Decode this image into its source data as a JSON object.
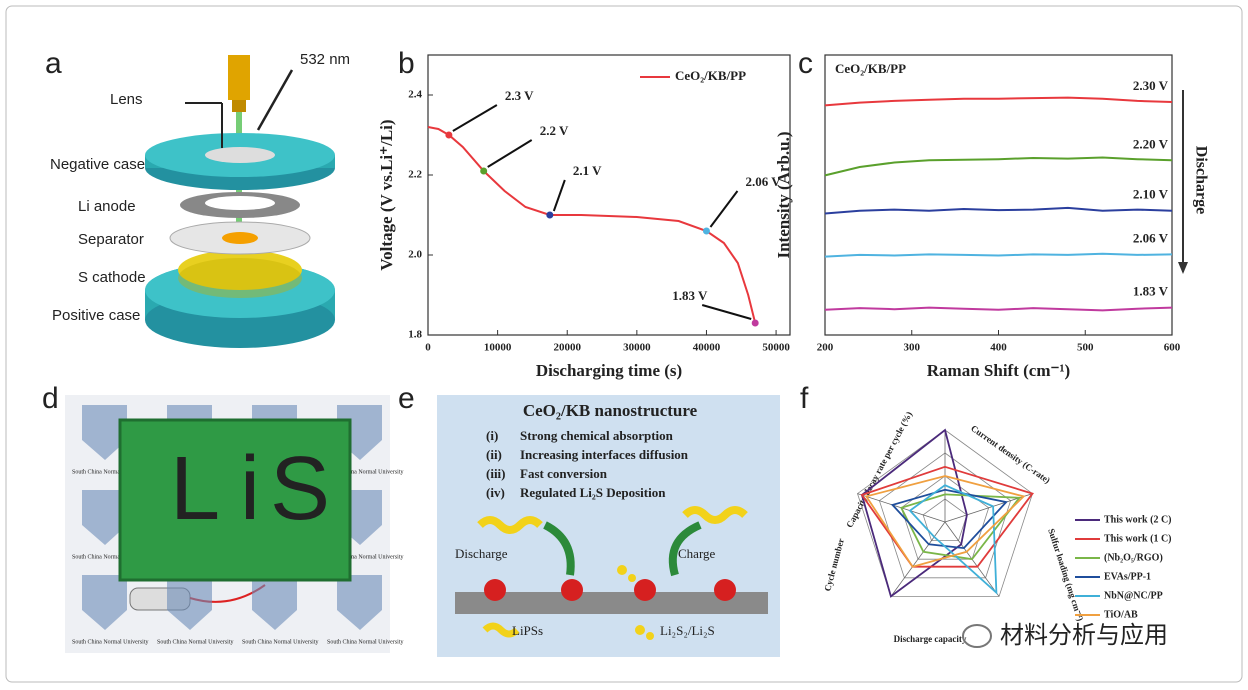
{
  "panel_labels": [
    "a",
    "b",
    "c",
    "d",
    "e",
    "f"
  ],
  "panel_a": {
    "labels": [
      "Lens",
      "532 nm",
      "Negative case",
      "Li anode",
      "Separator",
      "S cathode",
      "Positive case"
    ]
  },
  "panel_d": {
    "board_text": [
      "Li",
      "S"
    ],
    "logo_text": "South China Normal University"
  },
  "panel_e": {
    "title": "CeO₂/KB nanostructure",
    "items": [
      {
        "marker": "(i)",
        "text": "Strong chemical absorption"
      },
      {
        "marker": "(ii)",
        "text": "Increasing interfaces diffusion"
      },
      {
        "marker": "(iii)",
        "text": "Fast conversion"
      },
      {
        "marker": "(iv)",
        "text": "Regulated Li₂S Deposition"
      }
    ],
    "labels": [
      "Discharge",
      "Charge",
      "LiPSs",
      "Li₂S₂/Li₂S"
    ]
  },
  "watermark": "材料分析与应用",
  "chart_data": [
    {
      "type": "line",
      "legend": "CeO₂/KB/PP",
      "color": "#e8383d",
      "x_label": "Discharging time (s)",
      "y_label": "Voltage (V vs.Li⁺/Li)",
      "x": [
        0,
        1500,
        3000,
        5000,
        8000,
        11000,
        14000,
        17500,
        22000,
        30000,
        36000,
        40000,
        42500,
        44500,
        46000,
        47000
      ],
      "values": [
        2.32,
        2.315,
        2.3,
        2.27,
        2.21,
        2.16,
        2.12,
        2.1,
        2.1,
        2.095,
        2.085,
        2.06,
        2.03,
        1.98,
        1.9,
        1.83
      ],
      "xlim": [
        0,
        52000
      ],
      "xticks": [
        0,
        10000,
        20000,
        30000,
        40000,
        50000
      ],
      "ylim": [
        1.8,
        2.5
      ],
      "yticks": [
        1.8,
        {
          "value": 2,
          "label": "2.0"
        },
        2.2,
        2.4
      ],
      "annotations": [
        {
          "text": "2.3 V",
          "x": 3000,
          "y": 2.3,
          "color": "#e8383d"
        },
        {
          "text": "2.2 V",
          "x": 8000,
          "y": 2.21,
          "color": "#5aa02c"
        },
        {
          "text": "2.1 V",
          "x": 17500,
          "y": 2.1,
          "color": "#2b3f9e"
        },
        {
          "text": "2.06 V",
          "x": 40000,
          "y": 2.06,
          "color": "#4fb3e0"
        },
        {
          "text": "1.83 V",
          "x": 47000,
          "y": 1.83,
          "color": "#c03a9e"
        }
      ]
    },
    {
      "type": "line",
      "title": "CeO₂/KB/PP",
      "x_label": "Raman Shift (cm⁻¹)",
      "y_label": "Intensity (Arb.u.)",
      "note": "Discharge",
      "x": [
        200,
        240,
        280,
        320,
        360,
        400,
        440,
        480,
        520,
        560,
        600
      ],
      "xlim": [
        200,
        600
      ],
      "xticks": [
        200,
        300,
        400,
        500,
        600
      ],
      "ylim": [
        0,
        5
      ],
      "series": [
        {
          "name": "2.30 V",
          "color": "#e8383d",
          "values": [
            4.1,
            4.15,
            4.18,
            4.2,
            4.22,
            4.22,
            4.23,
            4.24,
            4.22,
            4.18,
            4.16
          ]
        },
        {
          "name": "2.20 V",
          "color": "#5aa02c",
          "values": [
            2.85,
            3.0,
            3.08,
            3.12,
            3.13,
            3.14,
            3.16,
            3.15,
            3.17,
            3.14,
            3.12
          ]
        },
        {
          "name": "2.10 V",
          "color": "#2b3f9e",
          "values": [
            2.17,
            2.22,
            2.24,
            2.22,
            2.25,
            2.23,
            2.24,
            2.27,
            2.22,
            2.24,
            2.22
          ]
        },
        {
          "name": "2.06 V",
          "color": "#4fb3e0",
          "values": [
            1.4,
            1.43,
            1.42,
            1.44,
            1.43,
            1.42,
            1.44,
            1.43,
            1.45,
            1.43,
            1.44
          ]
        },
        {
          "name": "1.83 V",
          "color": "#c03a9e",
          "values": [
            0.45,
            0.48,
            0.46,
            0.49,
            0.47,
            0.45,
            0.48,
            0.46,
            0.44,
            0.47,
            0.49
          ]
        }
      ]
    },
    {
      "type": "radar",
      "rlim": [
        0,
        1
      ],
      "axes": [
        "Capacity decay rate per cycle (%)",
        "Current density (C-rate)",
        "Sulfur loading (mg cm⁻²)",
        "Discharge capacity",
        "Cycle number"
      ],
      "series": [
        {
          "name": "This work (2 C)",
          "color": "#4b2a7b",
          "values": [
            1.0,
            0.25,
            0.3,
            1.0,
            0.95
          ]
        },
        {
          "name": "This work (1 C)",
          "color": "#e03b3b",
          "values": [
            0.6,
            1.0,
            0.6,
            0.6,
            0.95
          ]
        },
        {
          "name": "(Nb₂O₅/RGO)",
          "color": "#7ab648",
          "values": [
            0.3,
            0.85,
            0.5,
            0.4,
            0.5
          ]
        },
        {
          "name": "EVAs/PP-1",
          "color": "#1f4e9c",
          "values": [
            0.35,
            0.7,
            0.35,
            0.3,
            0.6
          ]
        },
        {
          "name": "NbN@NC/PP",
          "color": "#3fb0d8",
          "values": [
            0.4,
            0.55,
            0.95,
            0.2,
            0.4
          ]
        },
        {
          "name": "TiO/AB",
          "color": "#f0a040",
          "values": [
            0.5,
            0.9,
            0.4,
            0.6,
            0.9
          ]
        }
      ]
    }
  ]
}
